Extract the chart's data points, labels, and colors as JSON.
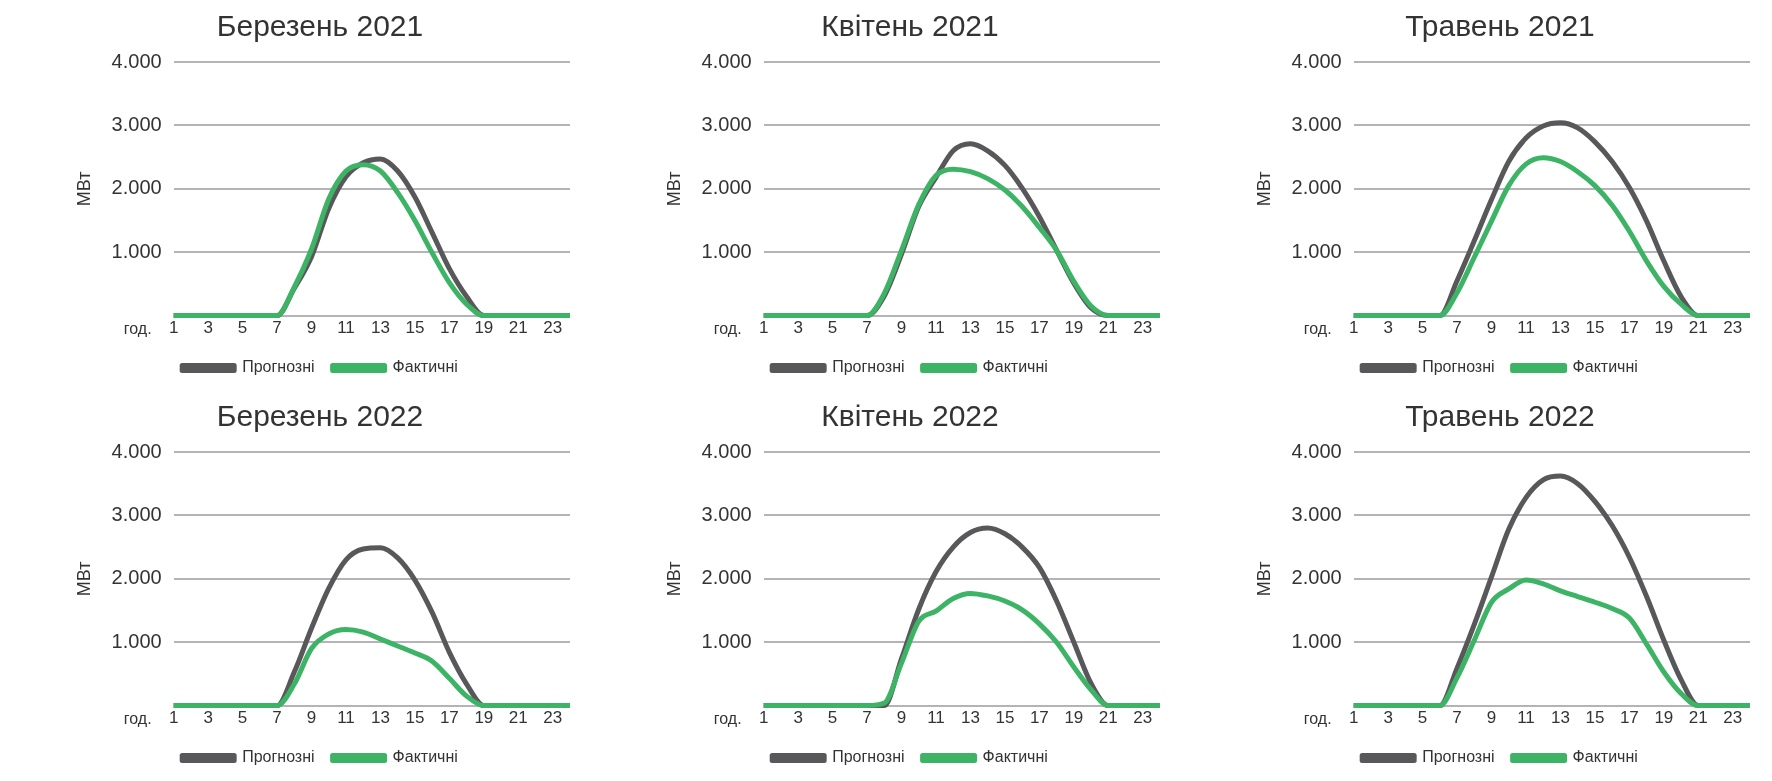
{
  "chart_data": [
    {
      "type": "line",
      "title": "Березень 2021",
      "xlabel": "год.",
      "ylabel": "МВт",
      "x": [
        1,
        2,
        3,
        4,
        5,
        6,
        7,
        8,
        9,
        10,
        11,
        12,
        13,
        14,
        15,
        16,
        17,
        18,
        19,
        20,
        21,
        22,
        23,
        24
      ],
      "xlim": [
        1,
        24
      ],
      "xticks": [
        1,
        3,
        5,
        7,
        9,
        11,
        13,
        15,
        17,
        19,
        21,
        23
      ],
      "ylim": [
        0,
        4000
      ],
      "yticks": [
        {
          "value": 0,
          "label": null
        },
        {
          "value": 1000,
          "label": "1.000"
        },
        {
          "value": 2000,
          "label": "2.000"
        },
        {
          "value": 3000,
          "label": "3.000"
        },
        {
          "value": 4000,
          "label": "4.000"
        }
      ],
      "grid": "y",
      "legend": "bottom",
      "series": [
        {
          "name": "Прогнозні",
          "color": "#58585a",
          "values": [
            0,
            0,
            0,
            0,
            0,
            0,
            0,
            430,
            930,
            1690,
            2190,
            2410,
            2470,
            2280,
            1870,
            1310,
            740,
            300,
            0,
            0,
            null,
            null,
            null,
            null
          ]
        },
        {
          "name": "Фактичні",
          "color": "#3db465",
          "values": [
            0,
            0,
            0,
            0,
            0,
            0,
            0,
            450,
            1050,
            1840,
            2280,
            2380,
            2280,
            1940,
            1500,
            990,
            520,
            180,
            0,
            0,
            0,
            0,
            0,
            0
          ]
        }
      ]
    },
    {
      "type": "line",
      "title": "Квітень 2021",
      "xlabel": "год.",
      "ylabel": "МВт",
      "x": [
        1,
        2,
        3,
        4,
        5,
        6,
        7,
        8,
        9,
        10,
        11,
        12,
        13,
        14,
        15,
        16,
        17,
        18,
        19,
        20,
        21,
        22,
        23,
        24
      ],
      "xlim": [
        1,
        24
      ],
      "xticks": [
        1,
        3,
        5,
        7,
        9,
        11,
        13,
        15,
        17,
        19,
        21,
        23
      ],
      "ylim": [
        0,
        4000
      ],
      "yticks": [
        {
          "value": 0,
          "label": null
        },
        {
          "value": 1000,
          "label": "1.000"
        },
        {
          "value": 2000,
          "label": "2.000"
        },
        {
          "value": 3000,
          "label": "3.000"
        },
        {
          "value": 4000,
          "label": "4.000"
        }
      ],
      "grid": "y",
      "legend": "bottom",
      "series": [
        {
          "name": "Прогнозні",
          "color": "#58585a",
          "values": [
            0,
            0,
            0,
            0,
            0,
            0,
            0,
            310,
            970,
            1720,
            2180,
            2600,
            2710,
            2600,
            2370,
            2010,
            1560,
            1030,
            510,
            120,
            0,
            0,
            null,
            null
          ]
        },
        {
          "name": "Фактичні",
          "color": "#3db465",
          "values": [
            0,
            0,
            0,
            0,
            0,
            0,
            0,
            350,
            1030,
            1750,
            2210,
            2310,
            2270,
            2160,
            1980,
            1720,
            1390,
            1030,
            540,
            150,
            0,
            0,
            0,
            0
          ]
        }
      ]
    },
    {
      "type": "line",
      "title": "Травень 2021",
      "xlabel": "год.",
      "ylabel": "МВт",
      "x": [
        1,
        2,
        3,
        4,
        5,
        6,
        7,
        8,
        9,
        10,
        11,
        12,
        13,
        14,
        15,
        16,
        17,
        18,
        19,
        20,
        21,
        22,
        23,
        24
      ],
      "xlim": [
        1,
        24
      ],
      "xticks": [
        1,
        3,
        5,
        7,
        9,
        11,
        13,
        15,
        17,
        19,
        21,
        23
      ],
      "ylim": [
        0,
        4000
      ],
      "yticks": [
        {
          "value": 0,
          "label": null
        },
        {
          "value": 1000,
          "label": "1.000"
        },
        {
          "value": 2000,
          "label": "2.000"
        },
        {
          "value": 3000,
          "label": "3.000"
        },
        {
          "value": 4000,
          "label": "4.000"
        }
      ],
      "grid": "y",
      "legend": "bottom",
      "series": [
        {
          "name": "Прогнозні",
          "color": "#58585a",
          "values": [
            0,
            0,
            0,
            0,
            0,
            0,
            550,
            1180,
            1830,
            2430,
            2800,
            2990,
            3040,
            2960,
            2740,
            2430,
            2020,
            1490,
            860,
            300,
            0,
            0,
            null,
            null
          ]
        },
        {
          "name": "Фактичні",
          "color": "#3db465",
          "values": [
            0,
            0,
            0,
            0,
            0,
            0,
            360,
            920,
            1490,
            2050,
            2390,
            2490,
            2430,
            2270,
            2050,
            1740,
            1330,
            860,
            460,
            180,
            0,
            0,
            0,
            0
          ]
        }
      ]
    },
    {
      "type": "line",
      "title": "Березень 2022",
      "xlabel": "год.",
      "ylabel": "МВт",
      "x": [
        1,
        2,
        3,
        4,
        5,
        6,
        7,
        8,
        9,
        10,
        11,
        12,
        13,
        14,
        15,
        16,
        17,
        18,
        19,
        20,
        21,
        22,
        23,
        24
      ],
      "xlim": [
        1,
        24
      ],
      "xticks": [
        1,
        3,
        5,
        7,
        9,
        11,
        13,
        15,
        17,
        19,
        21,
        23
      ],
      "ylim": [
        0,
        4000
      ],
      "yticks": [
        {
          "value": 0,
          "label": null
        },
        {
          "value": 1000,
          "label": "1.000"
        },
        {
          "value": 2000,
          "label": "2.000"
        },
        {
          "value": 3000,
          "label": "3.000"
        },
        {
          "value": 4000,
          "label": "4.000"
        }
      ],
      "grid": "y",
      "legend": "bottom",
      "series": [
        {
          "name": "Прогнозні",
          "color": "#58585a",
          "values": [
            0,
            0,
            0,
            0,
            0,
            0,
            0,
            530,
            1220,
            1850,
            2300,
            2470,
            2490,
            2330,
            1980,
            1470,
            840,
            340,
            0,
            0,
            null,
            null,
            null,
            null
          ]
        },
        {
          "name": "Фактичні",
          "color": "#3db465",
          "values": [
            0,
            0,
            0,
            0,
            0,
            0,
            0,
            340,
            900,
            1130,
            1200,
            1160,
            1050,
            940,
            830,
            700,
            430,
            150,
            0,
            0,
            0,
            0,
            0,
            0
          ]
        }
      ]
    },
    {
      "type": "line",
      "title": "Квітень 2022",
      "xlabel": "год.",
      "ylabel": "МВт",
      "x": [
        1,
        2,
        3,
        4,
        5,
        6,
        7,
        8,
        9,
        10,
        11,
        12,
        13,
        14,
        15,
        16,
        17,
        18,
        19,
        20,
        21,
        22,
        23,
        24
      ],
      "xlim": [
        1,
        24
      ],
      "xticks": [
        1,
        3,
        5,
        7,
        9,
        11,
        13,
        15,
        17,
        19,
        21,
        23
      ],
      "ylim": [
        0,
        4000
      ],
      "yticks": [
        {
          "value": 0,
          "label": null
        },
        {
          "value": 1000,
          "label": "1.000"
        },
        {
          "value": 2000,
          "label": "2.000"
        },
        {
          "value": 3000,
          "label": "3.000"
        },
        {
          "value": 4000,
          "label": "4.000"
        }
      ],
      "grid": "y",
      "legend": "bottom",
      "series": [
        {
          "name": "Прогнозні",
          "color": "#58585a",
          "values": [
            0,
            0,
            0,
            0,
            0,
            0,
            0,
            0,
            740,
            1520,
            2110,
            2500,
            2730,
            2800,
            2710,
            2500,
            2180,
            1650,
            1000,
            350,
            0,
            0,
            null,
            null
          ]
        },
        {
          "name": "Фактичні",
          "color": "#3db465",
          "values": [
            0,
            0,
            0,
            0,
            0,
            0,
            0,
            40,
            670,
            1330,
            1490,
            1690,
            1770,
            1730,
            1650,
            1510,
            1290,
            1000,
            610,
            250,
            0,
            0,
            0,
            0
          ]
        }
      ]
    },
    {
      "type": "line",
      "title": "Травень 2022",
      "xlabel": "год.",
      "ylabel": "МВт",
      "x": [
        1,
        2,
        3,
        4,
        5,
        6,
        7,
        8,
        9,
        10,
        11,
        12,
        13,
        14,
        15,
        16,
        17,
        18,
        19,
        20,
        21,
        22,
        23,
        24
      ],
      "xlim": [
        1,
        24
      ],
      "xticks": [
        1,
        3,
        5,
        7,
        9,
        11,
        13,
        15,
        17,
        19,
        21,
        23
      ],
      "ylim": [
        0,
        4000
      ],
      "yticks": [
        {
          "value": 0,
          "label": null
        },
        {
          "value": 1000,
          "label": "1.000"
        },
        {
          "value": 2000,
          "label": "2.000"
        },
        {
          "value": 3000,
          "label": "3.000"
        },
        {
          "value": 4000,
          "label": "4.000"
        }
      ],
      "grid": "y",
      "legend": "bottom",
      "series": [
        {
          "name": "Прогнозні",
          "color": "#58585a",
          "values": [
            0,
            0,
            0,
            0,
            0,
            0,
            590,
            1280,
            2030,
            2780,
            3280,
            3560,
            3620,
            3500,
            3220,
            2840,
            2340,
            1720,
            1030,
            410,
            0,
            0,
            null,
            null
          ]
        },
        {
          "name": "Фактичні",
          "color": "#3db465",
          "values": [
            0,
            0,
            0,
            0,
            0,
            0,
            440,
            1030,
            1630,
            1840,
            1980,
            1920,
            1810,
            1720,
            1630,
            1530,
            1380,
            970,
            530,
            190,
            0,
            0,
            0,
            0
          ]
        }
      ]
    }
  ]
}
